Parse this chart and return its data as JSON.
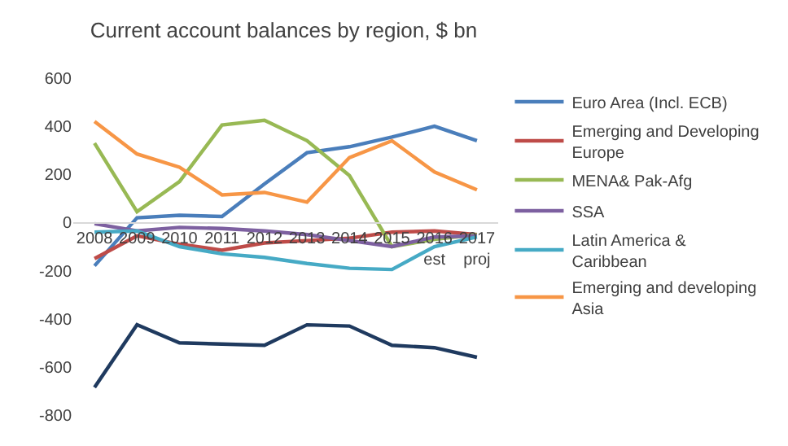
{
  "chart_data": {
    "type": "line",
    "title": "Current account balances by region, $ bn",
    "categories": [
      "2008",
      "2009",
      "2010",
      "2011",
      "2012",
      "2013",
      "2014",
      "2015",
      "2016 est",
      "2017 proj"
    ],
    "series": [
      {
        "name": "Euro Area (Incl. ECB)",
        "color": "#4a7ebb",
        "values": [
          -180,
          20,
          30,
          25,
          160,
          290,
          315,
          355,
          400,
          340
        ]
      },
      {
        "name": "Emerging and Developing Europe",
        "color": "#be4b48",
        "values": [
          -150,
          -55,
          -90,
          -115,
          -85,
          -75,
          -65,
          -40,
          -35,
          -50
        ]
      },
      {
        "name": "MENA& Pak-Afg",
        "color": "#98b954",
        "values": [
          330,
          45,
          170,
          405,
          425,
          340,
          195,
          -100,
          -70,
          -50
        ]
      },
      {
        "name": "SSA",
        "color": "#7d60a0",
        "values": [
          -5,
          -35,
          -20,
          -25,
          -35,
          -50,
          -75,
          -100,
          -60,
          -55
        ]
      },
      {
        "name": "Latin America & Caribbean",
        "color": "#46aac5",
        "values": [
          -40,
          -35,
          -100,
          -130,
          -145,
          -170,
          -190,
          -195,
          -100,
          -60
        ]
      },
      {
        "name": "Emerging and developing Asia",
        "color": "#f79646",
        "values": [
          420,
          285,
          230,
          115,
          125,
          85,
          270,
          340,
          210,
          136
        ]
      },
      {
        "color": "#1f3a5f",
        "values": [
          -685,
          -425,
          -500,
          -505,
          -510,
          -425,
          -430,
          -510,
          -520,
          -560
        ]
      }
    ],
    "ylim": [
      -800,
      600
    ],
    "yticks": [
      -800,
      -600,
      -400,
      -200,
      0,
      200,
      400,
      600
    ],
    "legend": "right",
    "marker": "none",
    "line_style": "solid"
  }
}
